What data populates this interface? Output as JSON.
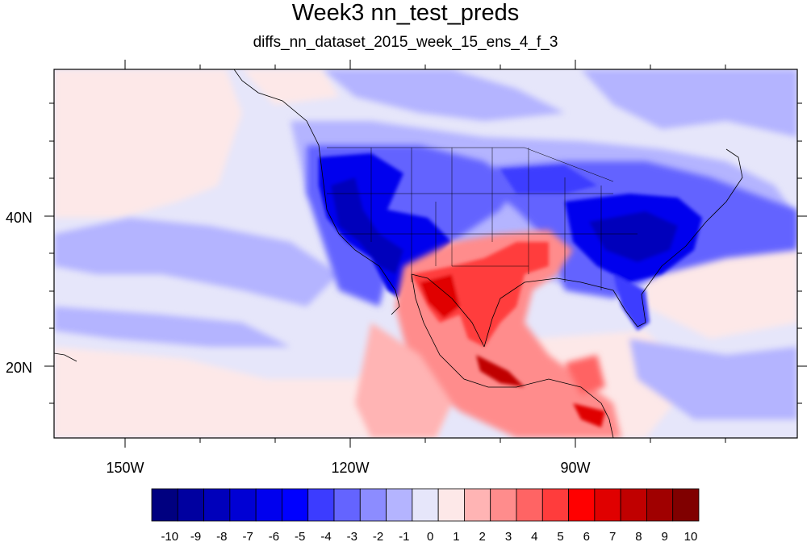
{
  "title": "Week3 nn_test_preds",
  "subtitle": "diffs_nn_dataset_2015_week_15_ens_4_f_3",
  "map": {
    "lon_range": [
      -160,
      -60
    ],
    "lat_range": [
      11,
      60
    ],
    "x_ticks": [
      {
        "value": -150,
        "label": "150W"
      },
      {
        "value": -120,
        "label": "120W"
      },
      {
        "value": -90,
        "label": "90W"
      }
    ],
    "y_ticks": [
      {
        "value": 20,
        "label": "20N"
      },
      {
        "value": 40,
        "label": "40N"
      }
    ]
  },
  "colorbar": {
    "levels": [
      "-10",
      "-9",
      "-8",
      "-7",
      "-6",
      "-5",
      "-4",
      "-3",
      "-2",
      "-1",
      "0",
      "1",
      "2",
      "3",
      "4",
      "5",
      "6",
      "7",
      "8",
      "9",
      "10"
    ],
    "colors": [
      "#000080",
      "#0000a0",
      "#0000bb",
      "#0000d4",
      "#0000ee",
      "#0000ff",
      "#3c3cff",
      "#6464ff",
      "#8c8cff",
      "#b4b4ff",
      "#e6e6fa",
      "#fde8e8",
      "#ffb4b4",
      "#ff8c8c",
      "#ff6464",
      "#ff3c3c",
      "#ff0000",
      "#e00000",
      "#c00000",
      "#a00000",
      "#800000"
    ]
  },
  "field_colors": {
    "bg_neutral": "#e6e6fa",
    "pos_light": "#fde8e8"
  }
}
